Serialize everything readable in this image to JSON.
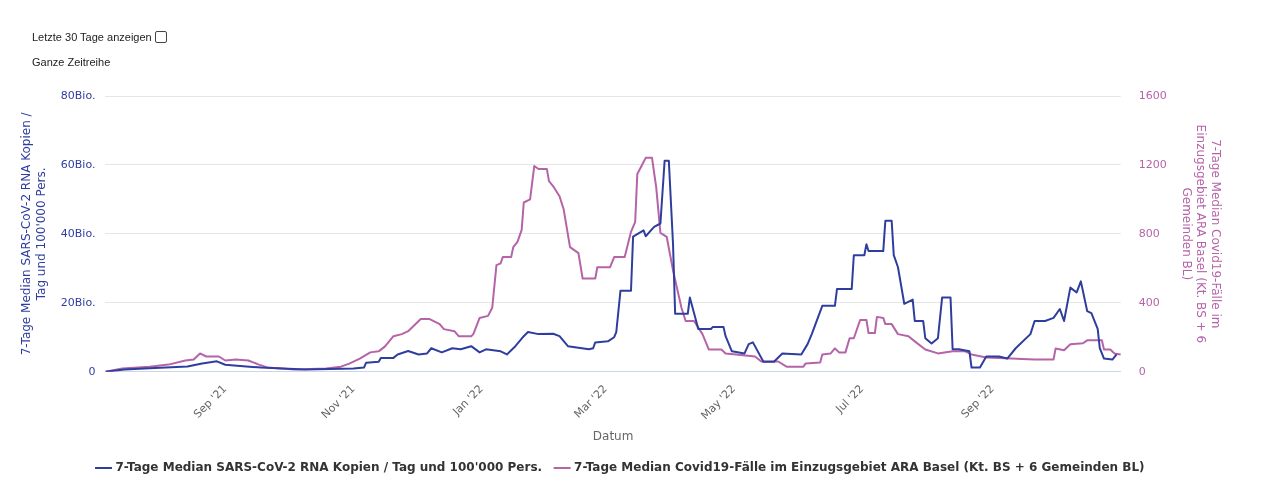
{
  "chart_data": {
    "type": "line",
    "xlabel": "Datum",
    "ylabel": "7-Tage Median SARS-CoV-2 RNA Kopien / Tag und 100'000 Pers.",
    "y2label": "7-Tage Median Covid19-Fälle im Einzugsgebiet ARA Basel (Kt. BS + 6 Gemeinden BL)",
    "annotations": [
      "Letzte 30 Tage anzeigen",
      "Ganze Zeitreihe"
    ],
    "xlim": [
      "2021-07-06",
      "2022-11-01"
    ],
    "xticks": [
      {
        "value": "2021-09-01",
        "label": "Sep '21"
      },
      {
        "value": "2021-11-01",
        "label": "Nov '21"
      },
      {
        "value": "2022-01-01",
        "label": "Jan '22"
      },
      {
        "value": "2022-03-01",
        "label": "Mar '22"
      },
      {
        "value": "2022-05-01",
        "label": "May '22"
      },
      {
        "value": "2022-07-01",
        "label": "Jul '22"
      },
      {
        "value": "2022-09-01",
        "label": "Sep '22"
      }
    ],
    "ylim": [
      0,
      80
    ],
    "yticks": [
      0,
      {
        "value": 20,
        "label": "20Bio."
      },
      {
        "value": 40,
        "label": "40Bio."
      },
      {
        "value": 60,
        "label": "60Bio."
      },
      {
        "value": 80,
        "label": "80Bio."
      }
    ],
    "y2lim": [
      0,
      1600
    ],
    "y2ticks": [
      0,
      400,
      800,
      1200,
      1600
    ],
    "grid": "y",
    "legend": "bottom",
    "marker": "none",
    "series": [
      {
        "name": "7-Tage Median SARS-CoV-2 RNA Kopien / Tag und 100'000 Pers.",
        "color": "#2f3e9e",
        "x": [
          "2021-07-06",
          "2021-07-15",
          "2021-07-27",
          "2021-08-14",
          "2021-08-21",
          "2021-08-28",
          "2021-09-01",
          "2021-09-11",
          "2021-09-18",
          "2021-10-09",
          "2021-11-01",
          "2021-11-06",
          "2021-11-07",
          "2021-11-13",
          "2021-11-14",
          "2021-11-20",
          "2021-11-22",
          "2021-11-27",
          "2021-12-02",
          "2021-12-06",
          "2021-12-08",
          "2021-12-13",
          "2021-12-18",
          "2021-12-22",
          "2021-12-27",
          "2021-12-31",
          "2022-01-03",
          "2022-01-10",
          "2022-01-13",
          "2022-01-17",
          "2022-01-21",
          "2022-01-23",
          "2022-01-28",
          "2022-02-04",
          "2022-02-07",
          "2022-02-11",
          "2022-02-21",
          "2022-02-23",
          "2022-02-24",
          "2022-03-02",
          "2022-03-05",
          "2022-03-06",
          "2022-03-08",
          "2022-03-13",
          "2022-03-14",
          "2022-03-19",
          "2022-03-20",
          "2022-03-24",
          "2022-03-27",
          "2022-03-29",
          "2022-03-31",
          "2022-04-02",
          "2022-04-03",
          "2022-04-09",
          "2022-04-10",
          "2022-04-13",
          "2022-04-14",
          "2022-04-20",
          "2022-04-21",
          "2022-04-26",
          "2022-04-27",
          "2022-04-30",
          "2022-05-06",
          "2022-05-08",
          "2022-05-10",
          "2022-05-15",
          "2022-05-20",
          "2022-05-24",
          "2022-06-02",
          "2022-06-05",
          "2022-06-07",
          "2022-06-12",
          "2022-06-18",
          "2022-06-19",
          "2022-06-26",
          "2022-06-27",
          "2022-07-02",
          "2022-07-03",
          "2022-07-04",
          "2022-07-11",
          "2022-07-12",
          "2022-07-15",
          "2022-07-16",
          "2022-07-18",
          "2022-07-21",
          "2022-07-25",
          "2022-07-26",
          "2022-07-30",
          "2022-07-31",
          "2022-08-03",
          "2022-08-06",
          "2022-08-08",
          "2022-08-12",
          "2022-08-13",
          "2022-08-16",
          "2022-08-21",
          "2022-08-22",
          "2022-08-26",
          "2022-08-29",
          "2022-09-04",
          "2022-09-08",
          "2022-09-12",
          "2022-09-19",
          "2022-09-21",
          "2022-09-26",
          "2022-09-30",
          "2022-10-03",
          "2022-10-05",
          "2022-10-08",
          "2022-10-11",
          "2022-10-13",
          "2022-10-16",
          "2022-10-18",
          "2022-10-21",
          "2022-10-22",
          "2022-10-24",
          "2022-10-28",
          "2022-10-30"
        ],
        "values": [
          0,
          0.6,
          1,
          1.5,
          2.4,
          3,
          2,
          1.5,
          1.2,
          0.6,
          0.9,
          1.2,
          2.6,
          2.9,
          4,
          4,
          5,
          6,
          5,
          5.3,
          6.8,
          5.6,
          6.8,
          6.5,
          7.4,
          5.6,
          6.5,
          5.9,
          5,
          7.4,
          10.3,
          11.5,
          10.9,
          11,
          10.3,
          7.4,
          6.5,
          6.8,
          8.5,
          8.8,
          10,
          11.5,
          23.5,
          23.5,
          39.2,
          41,
          39.3,
          42,
          43,
          61.2,
          61.2,
          37,
          16.8,
          16.8,
          21.5,
          14.7,
          12.4,
          12.4,
          13,
          13,
          10.3,
          5.9,
          5.3,
          8,
          8.5,
          2.9,
          2.9,
          5.3,
          5,
          8,
          10.9,
          19.1,
          19.1,
          24,
          24,
          33.8,
          33.8,
          37,
          35,
          35,
          43.8,
          43.8,
          33.8,
          30.3,
          19.7,
          20.9,
          14.7,
          14.7,
          9.7,
          8.2,
          9.7,
          21.5,
          21.5,
          6.5,
          6.5,
          5.9,
          1.2,
          1.2,
          4.4,
          4.4,
          3.8,
          6.8,
          10.9,
          14.7,
          14.7,
          15.6,
          18.2,
          14.7,
          24.4,
          23,
          26.2,
          17.6,
          17,
          12.4,
          6.8,
          3.8,
          3.5,
          5
        ]
      },
      {
        "name": "7-Tage Median Covid19-Fälle im Einzugsgebiet ARA Basel (Kt. BS + 6 Gemeinden BL)",
        "color": "#b564a8",
        "axis": "y2",
        "x": [
          "2021-07-06",
          "2021-07-14",
          "2021-07-27",
          "2021-08-05",
          "2021-08-13",
          "2021-08-17",
          "2021-08-20",
          "2021-08-23",
          "2021-08-29",
          "2021-09-01",
          "2021-09-06",
          "2021-09-12",
          "2021-09-17",
          "2021-09-21",
          "2021-10-04",
          "2021-10-19",
          "2021-10-26",
          "2021-10-30",
          "2021-11-04",
          "2021-11-09",
          "2021-11-13",
          "2021-11-16",
          "2021-11-20",
          "2021-11-24",
          "2021-11-27",
          "2021-12-03",
          "2021-12-07",
          "2021-12-12",
          "2021-12-14",
          "2021-12-19",
          "2021-12-21",
          "2021-12-27",
          "2021-12-28",
          "2021-12-31",
          "2022-01-04",
          "2022-01-06",
          "2022-01-08",
          "2022-01-10",
          "2022-01-11",
          "2022-01-15",
          "2022-01-16",
          "2022-01-18",
          "2022-01-20",
          "2022-01-21",
          "2022-01-24",
          "2022-01-26",
          "2022-01-28",
          "2022-02-01",
          "2022-02-02",
          "2022-02-04",
          "2022-02-07",
          "2022-02-09",
          "2022-02-12",
          "2022-02-16",
          "2022-02-18",
          "2022-02-24",
          "2022-02-25",
          "2022-03-03",
          "2022-03-05",
          "2022-03-10",
          "2022-03-13",
          "2022-03-15",
          "2022-03-16",
          "2022-03-18",
          "2022-03-20",
          "2022-03-23",
          "2022-03-25",
          "2022-03-27",
          "2022-03-30",
          "2022-04-02",
          "2022-04-06",
          "2022-04-08",
          "2022-04-12",
          "2022-04-16",
          "2022-04-19",
          "2022-04-25",
          "2022-04-27",
          "2022-05-02",
          "2022-05-11",
          "2022-05-14",
          "2022-05-22",
          "2022-05-26",
          "2022-06-03",
          "2022-06-04",
          "2022-06-11",
          "2022-06-12",
          "2022-06-16",
          "2022-06-18",
          "2022-06-20",
          "2022-06-23",
          "2022-06-25",
          "2022-06-27",
          "2022-06-30",
          "2022-07-03",
          "2022-07-04",
          "2022-07-07",
          "2022-07-08",
          "2022-07-11",
          "2022-07-12",
          "2022-07-15",
          "2022-07-18",
          "2022-07-23",
          "2022-07-26",
          "2022-07-31",
          "2022-08-06",
          "2022-08-13",
          "2022-08-19",
          "2022-08-22",
          "2022-08-29",
          "2022-09-10",
          "2022-09-21",
          "2022-09-30",
          "2022-10-01",
          "2022-10-05",
          "2022-10-08",
          "2022-10-14",
          "2022-10-16",
          "2022-10-23",
          "2022-10-24",
          "2022-10-27",
          "2022-10-29",
          "2022-11-01"
        ],
        "values": [
          0,
          18,
          29,
          41,
          65,
          71,
          106,
          88,
          88,
          65,
          71,
          65,
          41,
          24,
          12,
          18,
          29,
          47,
          76,
          112,
          118,
          147,
          206,
          218,
          235,
          306,
          306,
          276,
          247,
          235,
          206,
          206,
          218,
          312,
          324,
          371,
          618,
          629,
          665,
          665,
          723,
          753,
          823,
          982,
          1000,
          1194,
          1176,
          1176,
          1106,
          1076,
          1018,
          941,
          723,
          688,
          541,
          541,
          606,
          606,
          665,
          665,
          812,
          870,
          1147,
          1194,
          1241,
          1241,
          1070,
          806,
          782,
          588,
          371,
          294,
          294,
          218,
          129,
          129,
          106,
          100,
          88,
          59,
          59,
          29,
          29,
          47,
          53,
          100,
          106,
          135,
          112,
          112,
          194,
          194,
          300,
          300,
          224,
          224,
          318,
          312,
          276,
          276,
          218,
          206,
          176,
          129,
          106,
          118,
          118,
          100,
          82,
          76,
          71,
          71,
          135,
          124,
          159,
          165,
          182,
          182,
          129,
          129,
          106,
          100
        ]
      }
    ]
  }
}
